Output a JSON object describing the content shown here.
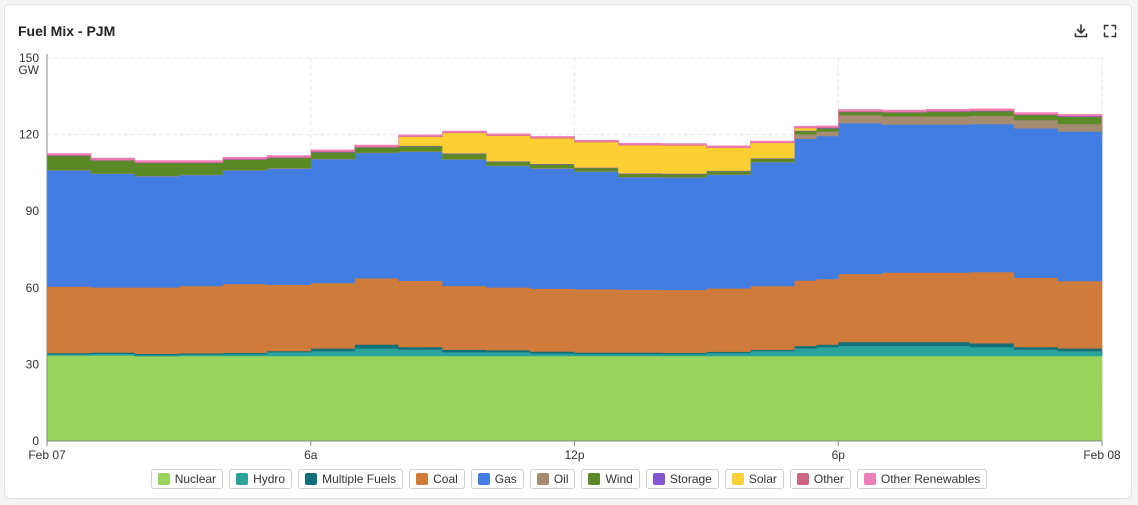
{
  "title": "Fuel Mix - PJM",
  "toolbar": {
    "download_icon": "download-icon",
    "fullscreen_icon": "fullscreen-icon"
  },
  "chart_data": {
    "type": "area",
    "stacked": true,
    "y_unit": "GW",
    "ylim": [
      0,
      150
    ],
    "y_ticks": [
      0,
      30,
      60,
      90,
      120,
      150
    ],
    "x_tick_labels": [
      "Feb 07",
      "6a",
      "12p",
      "6p",
      "Feb 08"
    ],
    "x_range_hours": [
      0,
      24
    ],
    "grid": true,
    "legend_position": "bottom",
    "x": [
      0,
      1,
      2,
      3,
      4,
      5,
      6,
      7,
      8,
      9,
      10,
      11,
      12,
      13,
      14,
      15,
      16,
      17,
      17.5,
      18,
      19,
      20,
      21,
      22,
      23,
      24
    ],
    "series": [
      {
        "name": "Nuclear",
        "color": "#9ad35b",
        "values": [
          33.5,
          33.5,
          33.2,
          33.3,
          33.3,
          33.3,
          33.3,
          33.3,
          33.3,
          33.3,
          33.3,
          33.3,
          33.3,
          33.3,
          33.3,
          33.3,
          33.3,
          33.3,
          33.3,
          33.3,
          33.3,
          33.3,
          33.3,
          33.3,
          33.3,
          33.3
        ]
      },
      {
        "name": "Hydro",
        "color": "#2aa39b",
        "values": [
          0.5,
          0.7,
          0.5,
          0.6,
          0.8,
          1.5,
          2,
          3,
          2.5,
          1.5,
          1.5,
          1,
          0.8,
          0.8,
          0.8,
          1.2,
          2,
          3,
          3.5,
          4,
          4,
          4,
          3.5,
          2.5,
          2,
          0.7
        ]
      },
      {
        "name": "Multiple Fuels",
        "color": "#13707a",
        "values": [
          0.5,
          0.5,
          0.5,
          0.5,
          0.5,
          0.5,
          1,
          1.5,
          1,
          1,
          0.8,
          0.8,
          0.6,
          0.6,
          0.5,
          0.5,
          0.5,
          1,
          1,
          1.5,
          1.5,
          1.5,
          1.5,
          1,
          1,
          0.5
        ]
      },
      {
        "name": "Coal",
        "color": "#cf7b3c",
        "values": [
          26,
          25.5,
          26,
          26.3,
          26.9,
          25.9,
          25.6,
          26,
          26,
          25,
          24.6,
          24.6,
          24.8,
          24.6,
          24.6,
          24.8,
          24.9,
          25.6,
          25.7,
          26.7,
          27.2,
          27.2,
          27.9,
          27.2,
          26.4,
          27.9
        ]
      },
      {
        "name": "Gas",
        "color": "#427ee1",
        "values": [
          45.5,
          44.5,
          43.5,
          43.5,
          44.5,
          45.5,
          48.5,
          49,
          50.5,
          49.5,
          47.5,
          47,
          46,
          44,
          44,
          44.5,
          48.5,
          55.5,
          56,
          59,
          58,
          58,
          58,
          58.5,
          58.5,
          55.7
        ]
      },
      {
        "name": "Oil",
        "color": "#a58b70",
        "values": [
          0.2,
          0.2,
          0.2,
          0.2,
          0.2,
          0.2,
          0.2,
          0.2,
          0.2,
          0.2,
          0.2,
          0.2,
          0.2,
          0.2,
          0.2,
          0.2,
          0.2,
          1.8,
          1.8,
          3.2,
          3.2,
          3.2,
          3.2,
          3.2,
          3,
          2.2
        ]
      },
      {
        "name": "Wind",
        "color": "#5a8a25",
        "values": [
          5.5,
          5,
          5,
          4.5,
          4,
          4,
          2.5,
          2,
          2,
          2,
          1.5,
          1.5,
          1.2,
          1.2,
          1.2,
          1.2,
          1.2,
          1.2,
          1.2,
          1.2,
          1.5,
          1.8,
          1.8,
          2,
          2.8,
          2.5
        ]
      },
      {
        "name": "Storage",
        "color": "#8655d6",
        "values": [
          0.2,
          0.2,
          0.2,
          0.2,
          0.2,
          0.2,
          0.2,
          0.2,
          0.2,
          0.2,
          0.2,
          0.2,
          0.2,
          0.2,
          0.2,
          0.2,
          0.2,
          0.2,
          0.2,
          0.2,
          0.2,
          0.2,
          0.2,
          0.2,
          0.2,
          0.2
        ]
      },
      {
        "name": "Solar",
        "color": "#fccf32",
        "values": [
          0,
          0,
          0,
          0,
          0,
          0,
          0,
          0,
          3.5,
          8,
          10,
          10,
          10,
          11,
          11,
          9,
          6,
          1,
          0,
          0,
          0,
          0,
          0,
          0,
          0,
          0
        ]
      },
      {
        "name": "Other",
        "color": "#cd6581",
        "values": [
          0.2,
          0.2,
          0.2,
          0.2,
          0.2,
          0.2,
          0.2,
          0.2,
          0.2,
          0.2,
          0.2,
          0.2,
          0.2,
          0.2,
          0.2,
          0.2,
          0.2,
          0.2,
          0.2,
          0.2,
          0.2,
          0.2,
          0.2,
          0.2,
          0.2,
          0.2
        ]
      },
      {
        "name": "Other Renewables",
        "color": "#ee7fb6",
        "values": [
          0.5,
          0.5,
          0.5,
          0.5,
          0.5,
          0.5,
          0.5,
          0.5,
          0.5,
          0.5,
          0.5,
          0.5,
          0.5,
          0.5,
          0.5,
          0.5,
          0.5,
          0.5,
          0.5,
          0.5,
          0.5,
          0.5,
          0.5,
          0.5,
          0.5,
          0.5
        ]
      }
    ]
  }
}
